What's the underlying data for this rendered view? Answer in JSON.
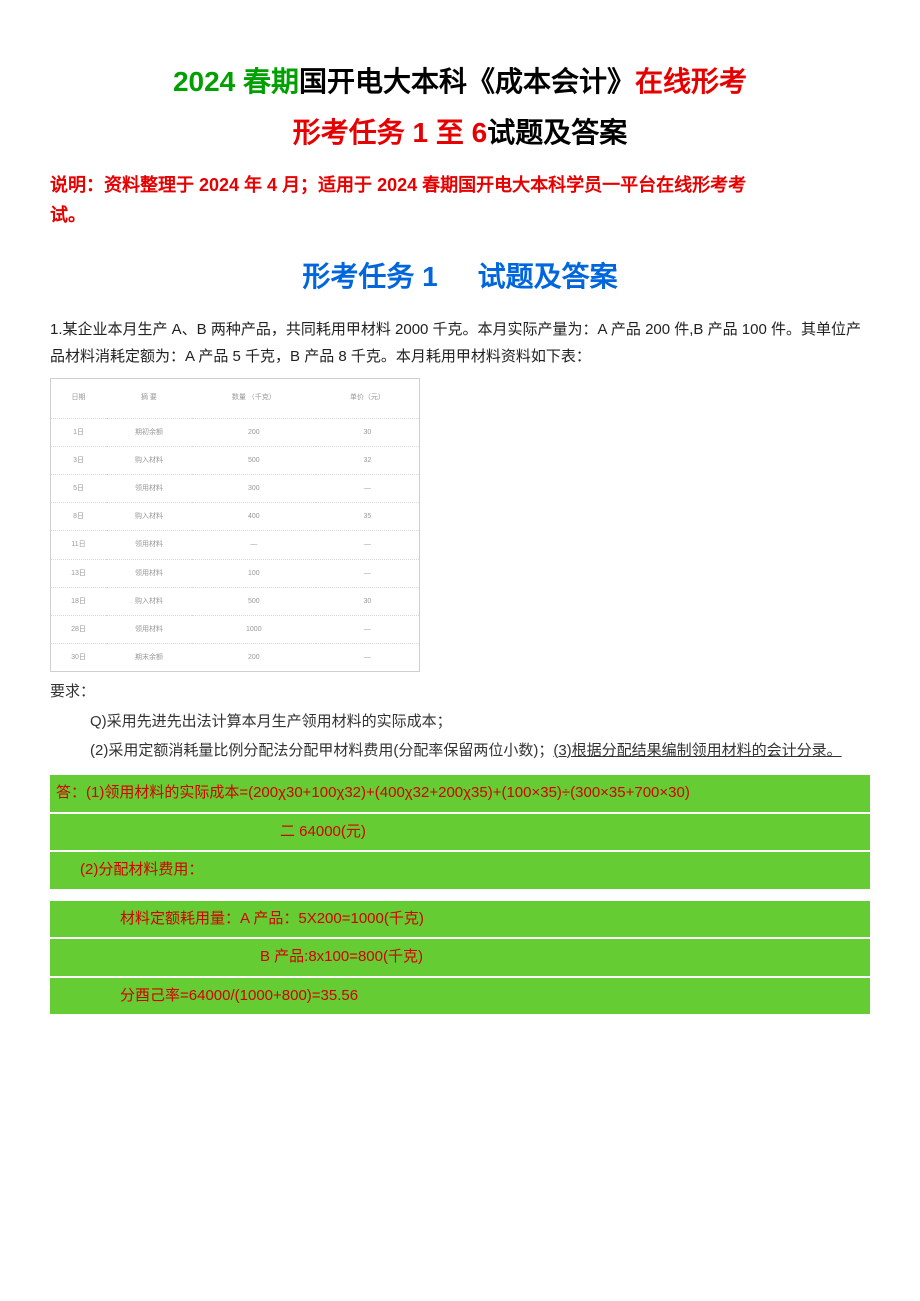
{
  "colors": {
    "red": "#e60000",
    "green": "#00a000",
    "blue": "#0066dd",
    "highlight_bg": "#66cc33",
    "answer_text": "#d40000",
    "body_text": "#222222",
    "table_border": "#cfcfcf",
    "table_text": "#999999"
  },
  "title": {
    "year": "2024 春期",
    "mid1": "国开电大本科《成本会计》",
    "tail1": "在线形考",
    "line2_a": "形考任务 1 至 6",
    "line2_b": "试题及答案"
  },
  "note": {
    "pre": "说明：资料整理于",
    "date": " 2024 ",
    "mid": "年",
    "month": " 4 ",
    "mid2": "月；适用于",
    "seg": " 2024 春期国开电大本科学员一平台在线形考考",
    "end": "试。"
  },
  "subtitle": {
    "a": "形考任务 1",
    "b": "试题及答案"
  },
  "q1": {
    "text": "1.某企业本月生产 A、B 两种产品，共同耗用甲材料 2000 千克。本月实际产量为：A 产品 200 件,B 产品 100 件。其单位产品材料消耗定额为：A 产品 5 千克，B 产品 8 千克。本月耗用甲材料资料如下表："
  },
  "stub_table": {
    "header": [
      "日期",
      "摘 要",
      "数量\n（千克）",
      "单价（元）"
    ],
    "rows": [
      [
        "1日",
        "期初余额",
        "200",
        "30"
      ],
      [
        "3日",
        "购入材料",
        "500",
        "32"
      ],
      [
        "5日",
        "领用材料",
        "300",
        "—"
      ],
      [
        "8日",
        "购入材料",
        "400",
        "35"
      ],
      [
        "11日",
        "领用材料",
        "—",
        "—"
      ],
      [
        "13日",
        "领用材料",
        "100",
        "—"
      ],
      [
        "18日",
        "购入材料",
        "500",
        "30"
      ],
      [
        "28日",
        "领用材料",
        "1000",
        "—"
      ],
      [
        "30日",
        "期末余额",
        "200",
        "—"
      ]
    ]
  },
  "yaoqiu": "要求：",
  "req1": "Q)采用先进先出法计算本月生产领用材料的实际成本；",
  "req2_a": "(2)采用定额消耗量比例分配法分配甲材料费用(分配率保留两位小数)；",
  "req2_b": "(3)根据分配结果编制领用材料的会计分录。",
  "answer": {
    "l1": "答：(1)领用材料的实际成本=(200χ30+100χ32)+(400χ32+200χ35)+(100×35)÷(300×35+700×30)",
    "l2": "二 64000(元)",
    "l3": "(2)分配材料费用：",
    "l4": "材料定额耗用量：A 产品：5X200=1000(千克)",
    "l5": "B 产品:8x100=800(千克)",
    "l6": "分酉己率=64000/(1000+800)=35.56"
  }
}
